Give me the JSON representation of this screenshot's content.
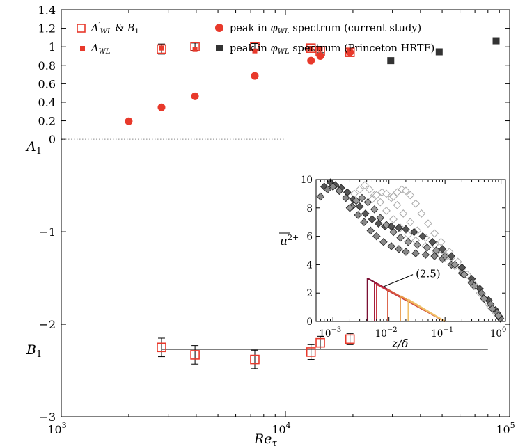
{
  "chart_data": [
    {
      "type": "scatter",
      "xlabel": "Re_τ",
      "ylabel_top": "A₁",
      "ylabel_bottom": "B₁",
      "xscale": "log",
      "xlim": [
        1000,
        100000
      ],
      "ylim": [
        -3,
        1.4
      ],
      "x_ticks": [
        {
          "value": 1000,
          "base": "10",
          "exp": "3"
        },
        {
          "value": 10000,
          "base": "10",
          "exp": "4"
        },
        {
          "value": 100000,
          "base": "10",
          "exp": "5"
        }
      ],
      "y_ticks": [
        {
          "value": 1.4,
          "label": "1.4"
        },
        {
          "value": 1.2,
          "label": "1.2"
        },
        {
          "value": 1.0,
          "label": "1"
        },
        {
          "value": 0.8,
          "label": "0.8"
        },
        {
          "value": 0.6,
          "label": "0.6"
        },
        {
          "value": 0.4,
          "label": "0.4"
        },
        {
          "value": 0.2,
          "label": "0.2"
        },
        {
          "value": 0.0,
          "label": "0"
        },
        {
          "value": -1,
          "label": "−1"
        },
        {
          "value": -2,
          "label": "−2"
        },
        {
          "value": -3,
          "label": "−3"
        }
      ],
      "legend": {
        "placement": "top",
        "entries": [
          {
            "label": "A′_WL & B₁",
            "marker": "open-square",
            "color": "#e8392b"
          },
          {
            "label": "A_WL",
            "marker": "filled-square",
            "color": "#e8392b"
          },
          {
            "label": "peak in φ_WL spectrum (current study)",
            "marker": "filled-circle",
            "color": "#e8392b"
          },
          {
            "label": "peak in φ_WL spectrum (Princeton HRTF)",
            "marker": "filled-square",
            "color": "#333333"
          }
        ]
      },
      "fit_lines": [
        {
          "name": "A1-mean",
          "x": [
            2800,
            80000
          ],
          "y": 0.975
        },
        {
          "name": "B1-mean",
          "x": [
            2800,
            80000
          ],
          "y": -2.27
        }
      ],
      "zero_line": {
        "y": 0,
        "x": [
          1000,
          10000
        ],
        "style": "dotted"
      },
      "series": [
        {
          "name": "A′_WL",
          "marker": "open-square",
          "color": "#e8392b",
          "points": [
            {
              "x": 2800,
              "y": 0.975,
              "err": 0.055
            },
            {
              "x": 3950,
              "y": 1.0,
              "err": 0.04
            },
            {
              "x": 7300,
              "y": 1.0,
              "err": 0.035
            },
            {
              "x": 13000,
              "y": 0.985,
              "err": 0.02
            },
            {
              "x": 14300,
              "y": 0.955,
              "err": 0.02
            },
            {
              "x": 19400,
              "y": 0.94,
              "err": 0.0
            }
          ]
        },
        {
          "name": "A_WL",
          "marker": "filled-square",
          "color": "#e8392b",
          "points": [
            {
              "x": 2800,
              "y": 0.985
            },
            {
              "x": 3950,
              "y": 0.97
            },
            {
              "x": 7300,
              "y": 0.955
            },
            {
              "x": 13000,
              "y": 0.98
            },
            {
              "x": 14300,
              "y": 0.97
            },
            {
              "x": 19400,
              "y": 0.94
            }
          ]
        },
        {
          "name": "peak (current study)",
          "marker": "filled-circle",
          "color": "#e8392b",
          "points": [
            {
              "x": 2000,
              "y": 0.195
            },
            {
              "x": 2800,
              "y": 0.345
            },
            {
              "x": 3950,
              "y": 0.465
            },
            {
              "x": 7300,
              "y": 0.685
            },
            {
              "x": 13000,
              "y": 0.85
            },
            {
              "x": 14300,
              "y": 0.9
            },
            {
              "x": 19400,
              "y": 0.94
            }
          ]
        },
        {
          "name": "peak (Princeton HRTF)",
          "marker": "filled-square",
          "color": "#333333",
          "points": [
            {
              "x": 29500,
              "y": 0.85
            },
            {
              "x": 48500,
              "y": 0.945
            },
            {
              "x": 87000,
              "y": 1.065
            }
          ]
        },
        {
          "name": "B₁",
          "marker": "open-square",
          "color": "#e8392b",
          "points": [
            {
              "x": 2800,
              "y": -2.25,
              "err": 0.1
            },
            {
              "x": 3950,
              "y": -2.33,
              "err": 0.1
            },
            {
              "x": 7300,
              "y": -2.38,
              "err": 0.1
            },
            {
              "x": 13000,
              "y": -2.3,
              "err": 0.08
            },
            {
              "x": 14300,
              "y": -2.2,
              "err": 0.07
            },
            {
              "x": 19400,
              "y": -2.16,
              "err": 0.06
            }
          ]
        }
      ]
    },
    {
      "type": "scatter",
      "name": "inset",
      "xlabel": "z/δ",
      "ylabel": "u²⁺",
      "xscale": "log",
      "xlim": [
        0.0005,
        1.2
      ],
      "ylim": [
        0,
        10
      ],
      "x_ticks": [
        {
          "value": 0.001,
          "base": "10",
          "exp": "−3"
        },
        {
          "value": 0.01,
          "base": "10",
          "exp": "−2"
        },
        {
          "value": 0.1,
          "base": "10",
          "exp": "−1"
        },
        {
          "value": 1,
          "base": "10",
          "exp": "0"
        }
      ],
      "y_ticks": [
        {
          "value": 0,
          "label": "0"
        },
        {
          "value": 2,
          "label": "2"
        },
        {
          "value": 4,
          "label": "4"
        },
        {
          "value": 6,
          "label": "6"
        },
        {
          "value": 8,
          "label": "8"
        },
        {
          "value": 10,
          "label": "10"
        }
      ],
      "annotation": {
        "text": "(2.5)",
        "x": 0.03,
        "y": 3.4,
        "arrow_to": {
          "x": 0.008,
          "y": 2.45
        }
      },
      "profiles": [
        {
          "style": "open-diamond",
          "color": "#aaaaaa",
          "points": [
            [
              0.0024,
              9.0
            ],
            [
              0.003,
              9.3
            ],
            [
              0.0037,
              9.6
            ],
            [
              0.0045,
              9.3
            ],
            [
              0.0055,
              8.9
            ],
            [
              0.007,
              8.4
            ],
            [
              0.009,
              7.8
            ],
            [
              0.012,
              7.2
            ],
            [
              0.016,
              6.6
            ],
            [
              0.022,
              6.1
            ],
            [
              0.03,
              5.7
            ],
            [
              0.045,
              5.3
            ],
            [
              0.07,
              4.9
            ],
            [
              0.1,
              4.5
            ],
            [
              0.15,
              3.9
            ],
            [
              0.22,
              3.3
            ],
            [
              0.3,
              2.7
            ],
            [
              0.42,
              2.0
            ],
            [
              0.6,
              1.2
            ],
            [
              0.8,
              0.6
            ],
            [
              0.95,
              0.3
            ]
          ]
        },
        {
          "style": "open-diamond",
          "color": "#aaaaaa",
          "points": [
            [
              0.005,
              8.6
            ],
            [
              0.006,
              8.9
            ],
            [
              0.0075,
              9.1
            ],
            [
              0.009,
              9.0
            ],
            [
              0.011,
              8.7
            ],
            [
              0.014,
              8.2
            ],
            [
              0.018,
              7.6
            ],
            [
              0.024,
              7.0
            ],
            [
              0.032,
              6.4
            ],
            [
              0.045,
              5.9
            ],
            [
              0.065,
              5.4
            ],
            [
              0.09,
              5.0
            ],
            [
              0.13,
              4.5
            ],
            [
              0.2,
              3.7
            ],
            [
              0.3,
              2.8
            ],
            [
              0.45,
              1.9
            ],
            [
              0.65,
              1.0
            ],
            [
              0.9,
              0.4
            ]
          ]
        },
        {
          "style": "open-diamond",
          "color": "#aaaaaa",
          "points": [
            [
              0.012,
              8.8
            ],
            [
              0.014,
              9.1
            ],
            [
              0.017,
              9.3
            ],
            [
              0.02,
              9.2
            ],
            [
              0.024,
              8.9
            ],
            [
              0.03,
              8.3
            ],
            [
              0.038,
              7.6
            ],
            [
              0.05,
              6.9
            ],
            [
              0.065,
              6.2
            ],
            [
              0.085,
              5.6
            ],
            [
              0.12,
              4.9
            ],
            [
              0.17,
              4.2
            ],
            [
              0.25,
              3.3
            ],
            [
              0.35,
              2.5
            ],
            [
              0.5,
              1.6
            ],
            [
              0.7,
              0.9
            ],
            [
              0.92,
              0.35
            ]
          ]
        },
        {
          "style": "filled-diamond",
          "color": "#555555",
          "points": [
            [
              0.0007,
              9.5
            ],
            [
              0.0009,
              9.8
            ],
            [
              0.0011,
              9.6
            ],
            [
              0.0014,
              9.4
            ],
            [
              0.0018,
              9.1
            ],
            [
              0.0023,
              8.6
            ],
            [
              0.003,
              8.1
            ],
            [
              0.0038,
              7.6
            ],
            [
              0.005,
              7.2
            ],
            [
              0.0065,
              6.9
            ],
            [
              0.0085,
              6.7
            ],
            [
              0.011,
              6.7
            ],
            [
              0.015,
              6.6
            ],
            [
              0.02,
              6.5
            ],
            [
              0.028,
              6.3
            ],
            [
              0.04,
              6.0
            ],
            [
              0.06,
              5.6
            ],
            [
              0.09,
              5.1
            ],
            [
              0.13,
              4.6
            ],
            [
              0.2,
              3.8
            ],
            [
              0.3,
              3.0
            ],
            [
              0.42,
              2.3
            ],
            [
              0.6,
              1.5
            ],
            [
              0.8,
              0.8
            ],
            [
              0.95,
              0.3
            ]
          ]
        },
        {
          "style": "filled-diamond",
          "color": "#888888",
          "points": [
            [
              0.0006,
              8.8
            ],
            [
              0.0008,
              9.3
            ],
            [
              0.001,
              9.5
            ],
            [
              0.0013,
              9.2
            ],
            [
              0.0017,
              8.7
            ],
            [
              0.0022,
              8.1
            ],
            [
              0.0028,
              7.5
            ],
            [
              0.0036,
              7.0
            ],
            [
              0.0047,
              6.4
            ],
            [
              0.006,
              6.0
            ],
            [
              0.008,
              5.6
            ],
            [
              0.011,
              5.3
            ],
            [
              0.015,
              5.1
            ],
            [
              0.02,
              4.9
            ],
            [
              0.03,
              4.8
            ],
            [
              0.045,
              4.7
            ],
            [
              0.065,
              4.6
            ],
            [
              0.09,
              4.4
            ],
            [
              0.13,
              4.0
            ],
            [
              0.2,
              3.4
            ],
            [
              0.3,
              2.7
            ],
            [
              0.45,
              2.0
            ],
            [
              0.65,
              1.2
            ],
            [
              0.85,
              0.6
            ],
            [
              0.97,
              0.2
            ]
          ]
        },
        {
          "style": "filled-diamond",
          "color": "#999999",
          "points": [
            [
              0.002,
              8.0
            ],
            [
              0.0026,
              8.5
            ],
            [
              0.0033,
              8.7
            ],
            [
              0.0042,
              8.4
            ],
            [
              0.0055,
              7.9
            ],
            [
              0.007,
              7.3
            ],
            [
              0.009,
              6.8
            ],
            [
              0.012,
              6.3
            ],
            [
              0.016,
              5.9
            ],
            [
              0.022,
              5.6
            ],
            [
              0.032,
              5.4
            ],
            [
              0.048,
              5.2
            ],
            [
              0.07,
              5.0
            ],
            [
              0.1,
              4.6
            ],
            [
              0.15,
              4.0
            ],
            [
              0.22,
              3.3
            ],
            [
              0.33,
              2.5
            ],
            [
              0.5,
              1.6
            ],
            [
              0.7,
              0.9
            ],
            [
              0.9,
              0.4
            ]
          ]
        }
      ],
      "log_law_lines": [
        {
          "color": "#7a1034",
          "z_start": 0.0041,
          "z_end": 0.1,
          "peak": 3.05
        },
        {
          "color": "#a61d3b",
          "z_start": 0.0055,
          "z_end": 0.1,
          "peak": 2.75
        },
        {
          "color": "#c4303e",
          "z_start": 0.006,
          "z_end": 0.1,
          "peak": 2.62
        },
        {
          "color": "#d8573c",
          "z_start": 0.0095,
          "z_end": 0.1,
          "peak": 2.25
        },
        {
          "color": "#e89a4a",
          "z_start": 0.016,
          "z_end": 0.1,
          "peak": 1.8
        },
        {
          "color": "#f0c068",
          "z_start": 0.022,
          "z_end": 0.1,
          "peak": 1.55
        }
      ]
    }
  ],
  "labels": {
    "A1_text": "A",
    "A1_sub": "1",
    "B1_text": "B",
    "B1_sub": "1",
    "xlabel_main": "Re",
    "xlabel_sub": "τ",
    "inset_xlabel": "z/δ",
    "inset_ylabel_base": "u",
    "inset_ylabel_sup": "2+",
    "legend_amp": "&",
    "legend_A_prime": "A",
    "legend_A_sub": "WL",
    "legend_B": "B",
    "legend_B_sub": "1",
    "legend_circle_text": "peak in",
    "legend_circle_tail": "spectrum (current study)",
    "legend_black_tail": "spectrum (Princeton HRTF)",
    "legend_phi": "φ",
    "legend_phi_sub": "WL",
    "annotation": "(2.5)"
  }
}
